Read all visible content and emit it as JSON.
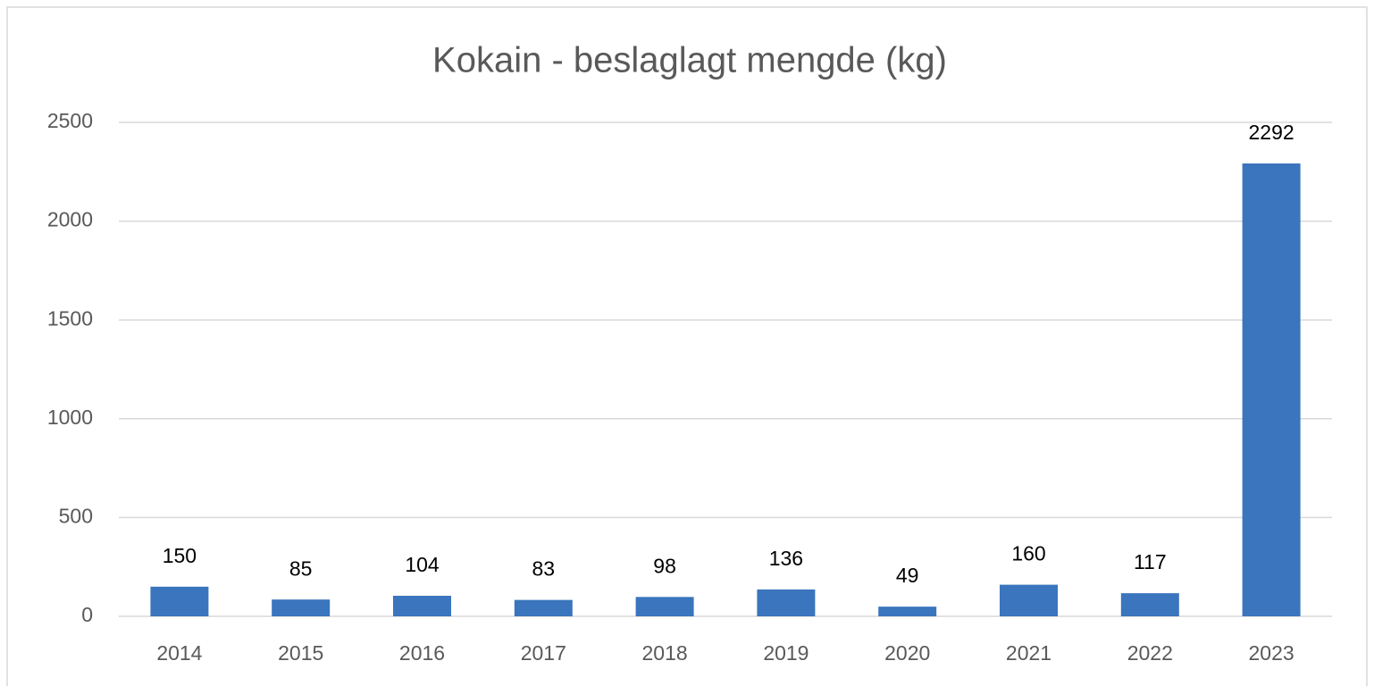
{
  "chart_data": {
    "type": "bar",
    "title": "Kokain - beslaglagt mengde (kg)",
    "categories": [
      "2014",
      "2015",
      "2016",
      "2017",
      "2018",
      "2019",
      "2020",
      "2021",
      "2022",
      "2023"
    ],
    "values": [
      150,
      85,
      104,
      83,
      98,
      136,
      49,
      160,
      117,
      2292
    ],
    "color": "#3a75bd",
    "ylim": [
      0,
      2500
    ],
    "yticks": [
      0,
      500,
      1000,
      1500,
      2000,
      2500
    ],
    "grid": true
  }
}
